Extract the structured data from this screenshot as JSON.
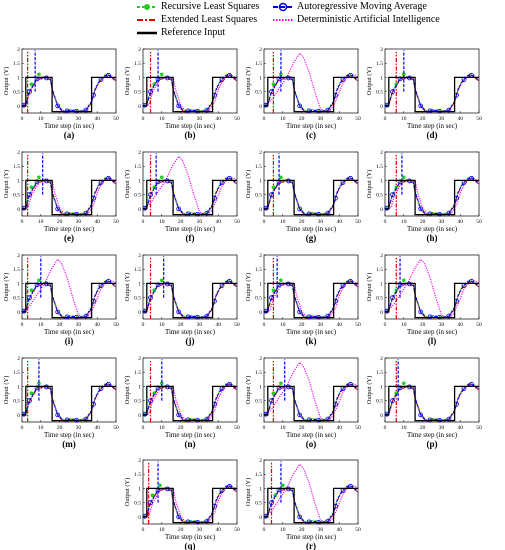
{
  "legend": {
    "rls": "Recursive Least Squares",
    "arma": "Autoregressive Moving Average",
    "els": "Extended Least Squares",
    "dai": "Deterministic Artificial Intelligence",
    "ref": "Reference Input"
  },
  "colors": {
    "rls": "#22cc22",
    "arma": "#0000ee",
    "els": "#dd0000",
    "dai": "#ee00ee",
    "ref": "#000000"
  },
  "chart_data": {
    "type": "line",
    "panel_count": 18,
    "panel_labels": [
      "(a)",
      "(b)",
      "(c)",
      "(d)",
      "(e)",
      "(f)",
      "(g)",
      "(h)",
      "(i)",
      "(j)",
      "(k)",
      "(l)",
      "(m)",
      "(n)",
      "(o)",
      "(p)",
      "(q)",
      "(r)"
    ],
    "xlabel": "Time step (in sec)",
    "ylabel": "Output (Y)",
    "xlim": [
      0,
      50
    ],
    "ylim": [
      -0.25,
      2
    ],
    "xticks": [
      0,
      10,
      20,
      30,
      40,
      50
    ],
    "yticks": [
      0,
      0.5,
      1,
      1.5,
      2
    ],
    "series_names": [
      "Recursive Least Squares",
      "Autoregressive Moving Average",
      "Extended Least Squares",
      "Deterministic Artificial Intelligence",
      "Reference Input"
    ],
    "reference_input": {
      "x": [
        0,
        2,
        2,
        16,
        16,
        37,
        37,
        50
      ],
      "y": [
        0,
        0,
        1,
        1,
        -0.2,
        -0.2,
        1,
        1
      ]
    },
    "tracking_curve": {
      "x": [
        0,
        2,
        4,
        8,
        12,
        15,
        16,
        19,
        22,
        26,
        30,
        34,
        37,
        39,
        41,
        43,
        45,
        47,
        50
      ],
      "y": [
        0,
        0.05,
        0.5,
        0.95,
        1.0,
        0.95,
        0.6,
        0.0,
        -0.2,
        -0.15,
        -0.2,
        -0.15,
        0.15,
        0.6,
        0.85,
        1.0,
        1.1,
        1.05,
        0.9
      ]
    },
    "lagged_dai_peak_panels": [
      "(c)",
      "(f)",
      "(i)",
      "(l)",
      "(o)",
      "(r)"
    ],
    "lagged_dai_curve": {
      "x": [
        0,
        4,
        8,
        12,
        16,
        19,
        21,
        24,
        27,
        30,
        33,
        36,
        39,
        42,
        45,
        48,
        50
      ],
      "y": [
        0,
        0.2,
        0.6,
        1.0,
        1.55,
        1.85,
        1.7,
        1.2,
        0.5,
        -0.1,
        -0.2,
        -0.1,
        0.3,
        0.8,
        1.05,
        1.1,
        1.0
      ]
    }
  }
}
